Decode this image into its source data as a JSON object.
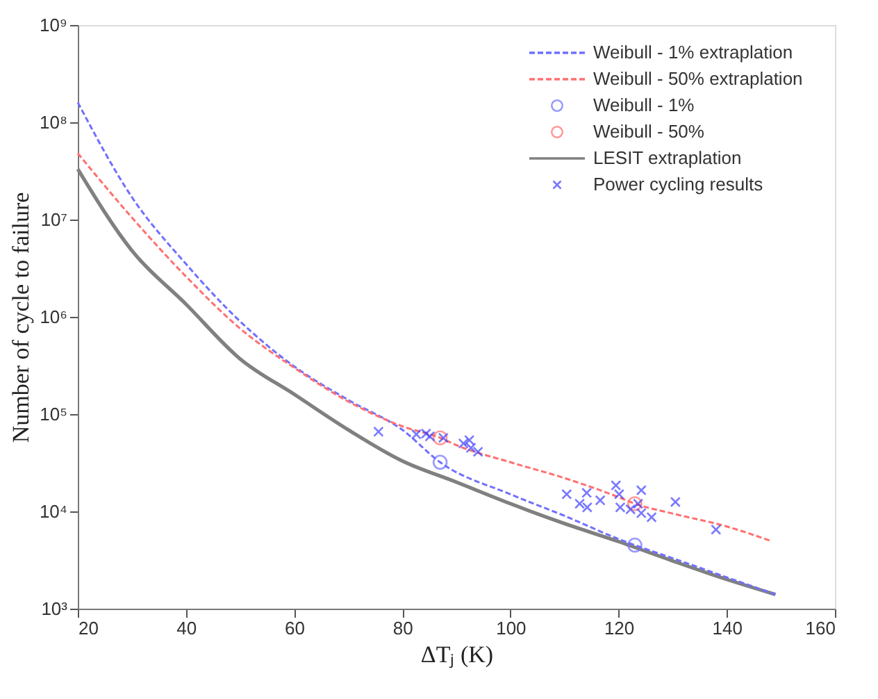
{
  "chart_data": {
    "type": "line",
    "xlabel": "ΔTⱼ (K)",
    "ylabel": "Number of cycle to failure",
    "xlim": [
      20,
      160
    ],
    "xticks": [
      20,
      40,
      60,
      80,
      100,
      120,
      140,
      160
    ],
    "ylim": [
      1000,
      1000000000
    ],
    "yticks": [
      {
        "value": 1000,
        "label": "10³"
      },
      {
        "value": 10000,
        "label": "10⁴"
      },
      {
        "value": 100000,
        "label": "10⁵"
      },
      {
        "value": 1000000,
        "label": "10⁶"
      },
      {
        "value": 10000000,
        "label": "10⁷"
      },
      {
        "value": 100000000,
        "label": "10⁸"
      },
      {
        "value": 1000000000,
        "label": "10⁹"
      }
    ],
    "log": "y",
    "grid": false,
    "legend": "top right",
    "series": [
      {
        "name": "Weibull - 1% extraplation",
        "line_style": "dashed",
        "color": "#7070ff",
        "x": [
          20,
          30,
          40,
          50,
          60,
          70,
          80,
          87,
          100,
          110,
          120,
          123,
          130,
          140,
          149
        ],
        "values": [
          160000000,
          17000000,
          3500000,
          900000,
          310000,
          140000,
          69000,
          32000,
          15000,
          9000,
          5200,
          4500,
          3300,
          2100,
          1400
        ]
      },
      {
        "name": "Weibull - 50% extraplation",
        "line_style": "dashed",
        "color": "#ff7070",
        "x": [
          20,
          30,
          40,
          50,
          60,
          70,
          80,
          87,
          90,
          100,
          110,
          120,
          123,
          130,
          140,
          148
        ],
        "values": [
          48000000,
          10500000,
          2600000,
          760000,
          300000,
          135000,
          75000,
          57000,
          48000,
          32000,
          22000,
          14000,
          12000,
          9500,
          7000,
          5000
        ]
      },
      {
        "name": "Weibull - 1%",
        "type": "scatter",
        "marker": "circle",
        "color": "#7070ff",
        "x": [
          87,
          123
        ],
        "values": [
          32000,
          4500
        ]
      },
      {
        "name": "Weibull - 50%",
        "type": "scatter",
        "marker": "circle",
        "color": "#ff7070",
        "x": [
          87,
          123
        ],
        "values": [
          57000,
          12000
        ]
      },
      {
        "name": "LESIT extraplation",
        "line_style": "solid",
        "color": "#808080",
        "x": [
          20,
          30,
          40,
          50,
          60,
          70,
          80,
          90,
          100,
          110,
          120,
          130,
          140,
          149
        ],
        "values": [
          33000000,
          4800000,
          1350000,
          370000,
          160000,
          69000,
          33000,
          20000,
          12000,
          7500,
          4900,
          3100,
          2000,
          1400
        ]
      },
      {
        "name": "Power cycling results",
        "type": "scatter",
        "marker": "cross",
        "color": "#4040ff",
        "x": [
          75.6,
          82.6,
          84.4,
          85.1,
          87.6,
          91.3,
          92.4,
          92.7,
          94,
          110.4,
          112.8,
          114.1,
          114.2,
          116.6,
          119.5,
          120.1,
          120.3,
          122.2,
          123.6,
          124.2,
          124.2,
          126.1,
          130.5,
          138
        ],
        "values": [
          66000,
          62000,
          63000,
          59000,
          57000,
          50000,
          54000,
          45000,
          41000,
          15000,
          12000,
          15500,
          11000,
          13000,
          18500,
          15000,
          11000,
          10500,
          12000,
          16500,
          9600,
          8700,
          12500,
          6500
        ]
      }
    ]
  }
}
